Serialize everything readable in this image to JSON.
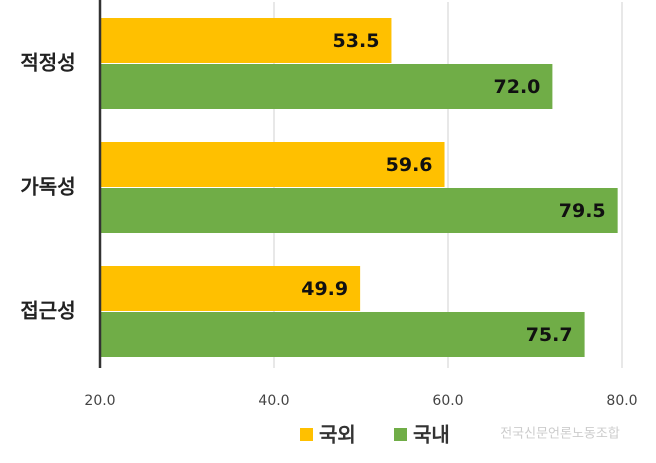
{
  "chart_data": {
    "type": "barh",
    "categories": [
      "적정성",
      "가독성",
      "접근성"
    ],
    "series": [
      {
        "name": "국외",
        "color": "#FFC000",
        "values": [
          53.5,
          59.6,
          49.9
        ],
        "value_labels": [
          "53.5",
          "59.6",
          "49.9"
        ]
      },
      {
        "name": "국내",
        "color": "#70AD47",
        "values": [
          72.0,
          79.5,
          75.7
        ],
        "value_labels": [
          "72.0",
          "79.5",
          "75.7"
        ]
      }
    ],
    "xlim": [
      20,
      80
    ],
    "xticks": [
      {
        "value": 20,
        "label": "20.0"
      },
      {
        "value": 40,
        "label": "40.0"
      },
      {
        "value": 60,
        "label": "60.0"
      },
      {
        "value": 80,
        "label": "80.0"
      }
    ],
    "grid": true,
    "legend": "bottom",
    "watermark": "전국신문언론노동조합"
  }
}
